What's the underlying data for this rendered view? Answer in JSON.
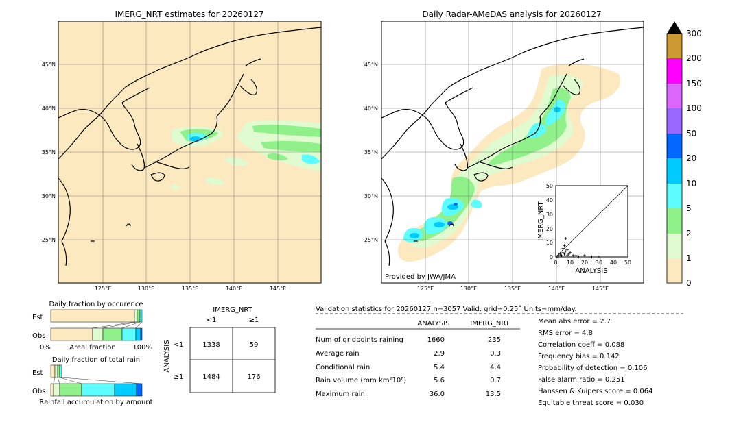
{
  "left_map": {
    "title": "IMERG_NRT estimates for 20260127",
    "lat_labels": [
      "45°N",
      "40°N",
      "35°N",
      "30°N",
      "25°N"
    ],
    "lon_labels": [
      "125°E",
      "130°E",
      "135°E",
      "140°E",
      "145°E"
    ]
  },
  "right_map": {
    "title": "Daily Radar-AMeDAS analysis for 20260127",
    "lat_labels": [
      "45°N",
      "40°N",
      "35°N",
      "30°N",
      "25°N"
    ],
    "lon_labels": [
      "125°E",
      "130°E",
      "135°E",
      "140°E",
      "145°E"
    ],
    "credit": "Provided by JWA/JMA"
  },
  "colorbar": {
    "levels": [
      "0",
      "1",
      "2",
      "5",
      "10",
      "20",
      "50",
      "100",
      "150",
      "200",
      "300"
    ],
    "colors": [
      "#fde9c0",
      "#e0fbd0",
      "#90f08a",
      "#5dfdfd",
      "#00cbff",
      "#0068ff",
      "#9966ff",
      "#dd66ff",
      "#ff00ff",
      "#cc9933"
    ]
  },
  "inset": {
    "xlabel": "ANALYSIS",
    "ylabel": "IMERG_NRT",
    "ticks": [
      "0",
      "10",
      "20",
      "30",
      "40",
      "50"
    ]
  },
  "occurrence": {
    "title": "Daily fraction by occurence",
    "rows": [
      "Est",
      "Obs"
    ],
    "xmin_label": "0%",
    "xmid_label": "Areal fraction",
    "xmax_label": "100%"
  },
  "total_rain": {
    "title": "Daily fraction of total rain",
    "rows": [
      "Est",
      "Obs"
    ],
    "xlabel": "Rainfall accumulation by amount"
  },
  "contingency": {
    "col_title": "IMERG_NRT",
    "col_labels": [
      "<1",
      "≥1"
    ],
    "row_title": "ANALYSIS",
    "row_labels": [
      "<1",
      "≥1"
    ],
    "cells": [
      [
        "1338",
        "59"
      ],
      [
        "1484",
        "176"
      ]
    ]
  },
  "validation": {
    "header": "Validation statistics for 20260127  n=3057 Valid. grid=0.25˚ Units=mm/day.",
    "col_analysis": "ANALYSIS",
    "col_imerg": "IMERG_NRT",
    "rows": [
      {
        "label": "Num of gridpoints raining",
        "analysis": "1660",
        "imerg": "235"
      },
      {
        "label": "Average rain",
        "analysis": "2.9",
        "imerg": "0.3"
      },
      {
        "label": "Conditional rain",
        "analysis": "5.4",
        "imerg": "4.4"
      },
      {
        "label": "Rain volume (mm km²10⁶)",
        "analysis": "5.6",
        "imerg": "0.7"
      },
      {
        "label": "Maximum rain",
        "analysis": "36.0",
        "imerg": "13.5"
      }
    ],
    "scores": [
      "Mean abs error =    2.7",
      "RMS error =    4.8",
      "Correlation coeff =  0.088",
      "Frequency bias =  0.142",
      "Probability of detection =  0.106",
      "False alarm ratio =  0.251",
      "Hanssen & Kuipers score =  0.064",
      "Equitable threat score =  0.030"
    ]
  },
  "chart_data": {
    "type": "scatter",
    "xlabel": "ANALYSIS",
    "ylabel": "IMERG_NRT",
    "xlim": [
      0,
      50
    ],
    "ylim": [
      0,
      50
    ],
    "x": [
      1,
      2,
      3,
      4,
      5,
      5,
      6,
      6,
      7,
      7,
      8,
      8,
      9,
      10,
      12,
      14,
      16,
      20,
      25,
      30
    ],
    "y": [
      0,
      1,
      2,
      1,
      3,
      6,
      2,
      8,
      4,
      13,
      1,
      5,
      2,
      3,
      1,
      1,
      0,
      1,
      0,
      0
    ]
  }
}
